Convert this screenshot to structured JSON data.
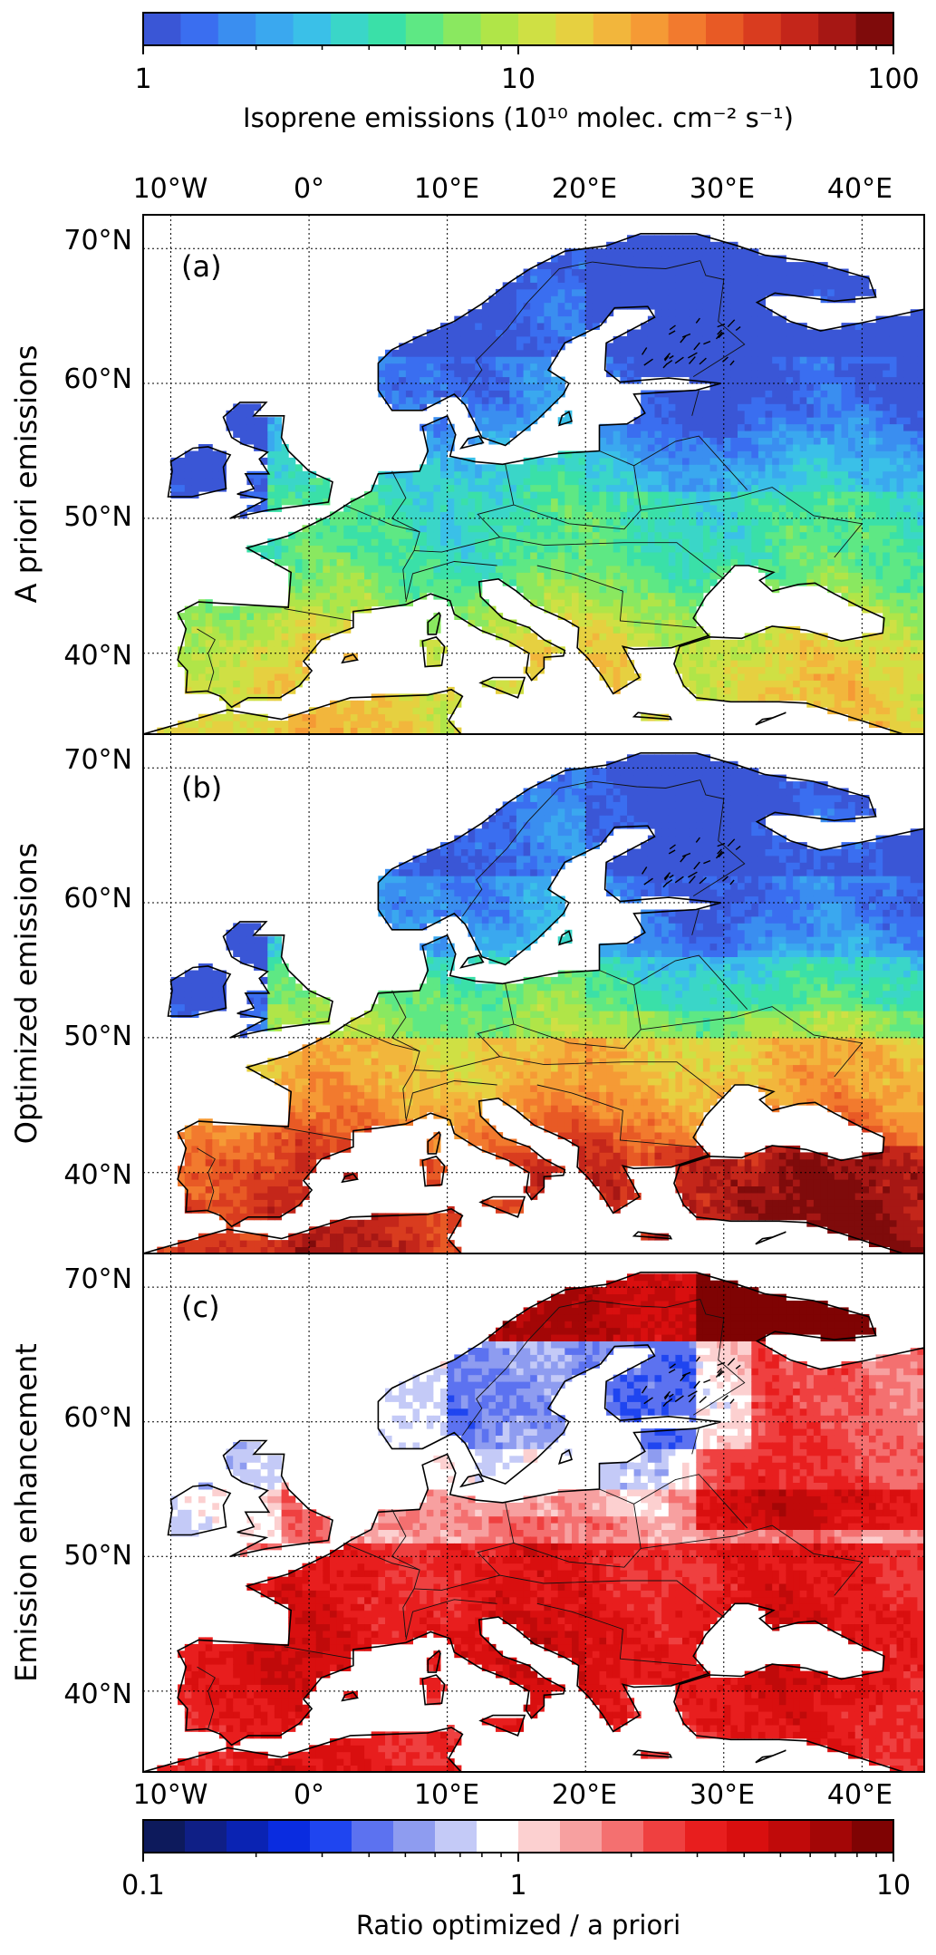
{
  "figure": {
    "top_colorbar": {
      "label": "Isoprene emissions (10¹⁰ molec. cm⁻² s⁻¹)",
      "ticks": [
        "1",
        "10",
        "100"
      ],
      "scale": "log",
      "range": [
        1,
        100
      ],
      "colors": [
        "#3a56d6",
        "#3a6ef0",
        "#3a8ef0",
        "#3aa8ef",
        "#3ac0e8",
        "#3ad6c8",
        "#3ae0a8",
        "#5ee884",
        "#8ae860",
        "#b0e548",
        "#cfe044",
        "#e6d040",
        "#f2b63c",
        "#f59a35",
        "#f27a2e",
        "#e85a25",
        "#d93c1f",
        "#c4261a",
        "#a61714",
        "#7f0b0b"
      ]
    },
    "bottom_colorbar": {
      "label": "Ratio optimized / a priori",
      "ticks": [
        "0.1",
        "1",
        "10"
      ],
      "scale": "log",
      "range": [
        0.1,
        10
      ],
      "colors": [
        "#0d1a5c",
        "#0f1f86",
        "#0a23b3",
        "#0a2ce0",
        "#1f45f0",
        "#5c72f0",
        "#8e9cf0",
        "#c4caf7",
        "#ffffff",
        "#fcd0d0",
        "#f7a0a0",
        "#f47070",
        "#ef4040",
        "#e81e1e",
        "#d90f0f",
        "#c00a0a",
        "#a30606",
        "#7f0303"
      ]
    },
    "longitude_ticks": [
      "10°W",
      "0°",
      "10°E",
      "20°E",
      "30°E",
      "40°E"
    ],
    "latitude_ticks": [
      "70°N",
      "60°N",
      "50°N",
      "40°N"
    ],
    "panels": [
      {
        "tag": "(a)",
        "ylabel": "A priori emissions",
        "scheme": "emission",
        "level": "low"
      },
      {
        "tag": "(b)",
        "ylabel": "Optimized emissions",
        "scheme": "emission",
        "level": "high"
      },
      {
        "tag": "(c)",
        "ylabel": "Emission enhancement",
        "scheme": "ratio",
        "level": "ratio"
      }
    ],
    "colors": {
      "sea": "#ffffff",
      "coast": "#000000",
      "grid": "#000000"
    }
  }
}
